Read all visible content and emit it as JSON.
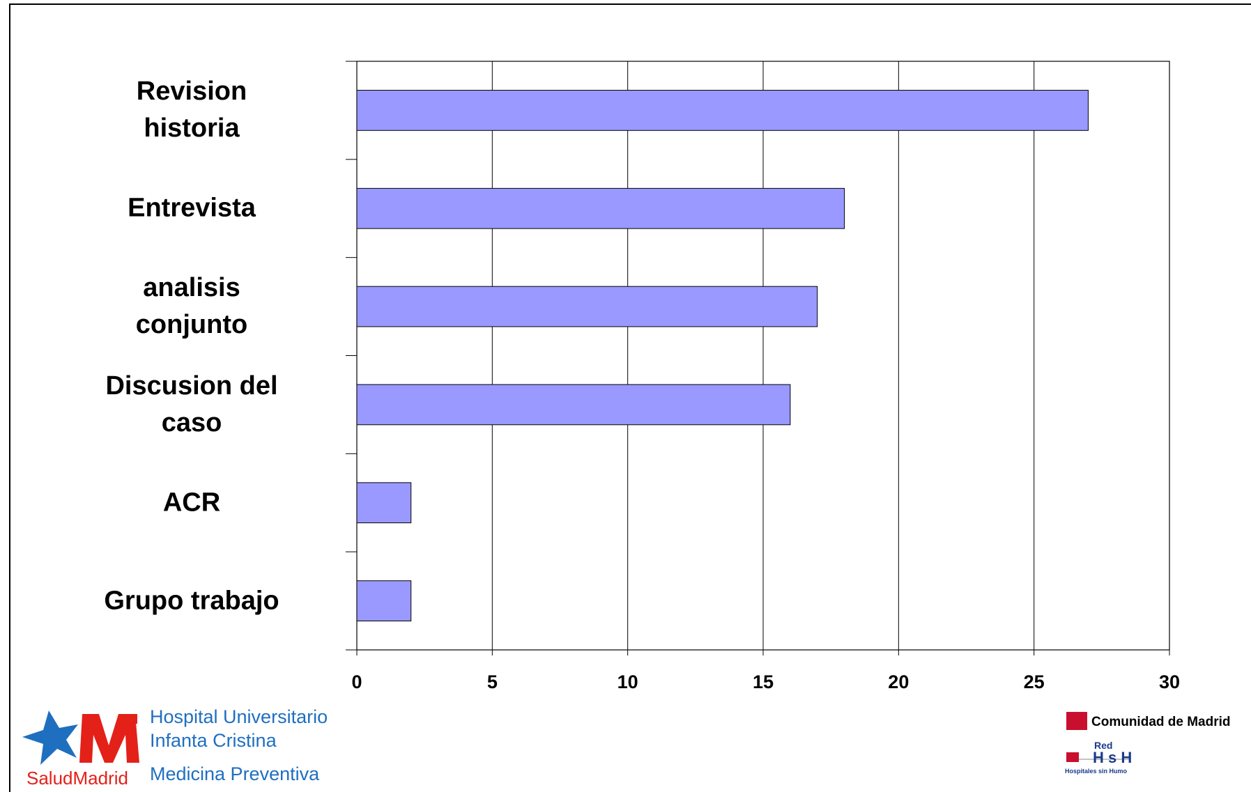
{
  "chart_data": {
    "type": "bar",
    "orientation": "horizontal",
    "categories": [
      "Revision\nhistoria",
      "Entrevista",
      "analisis\nconjunto",
      "Discusion del\ncaso",
      "ACR",
      "Grupo trabajo"
    ],
    "values": [
      27,
      18,
      17,
      16,
      2,
      2
    ],
    "color": "#9999ff",
    "xlim": [
      0,
      30
    ],
    "xticks": [
      0,
      5,
      10,
      15,
      20,
      25,
      30
    ],
    "grid": true
  },
  "footer": {
    "hospital": [
      "Hospital Universitario",
      "Infanta Cristina",
      "Medicina Preventiva"
    ],
    "salud_logo": "SaludMadrid",
    "comunidad": "Comunidad de Madrid",
    "red_logo": [
      "Red",
      "H s H",
      "Hospitales sin Humo"
    ]
  }
}
